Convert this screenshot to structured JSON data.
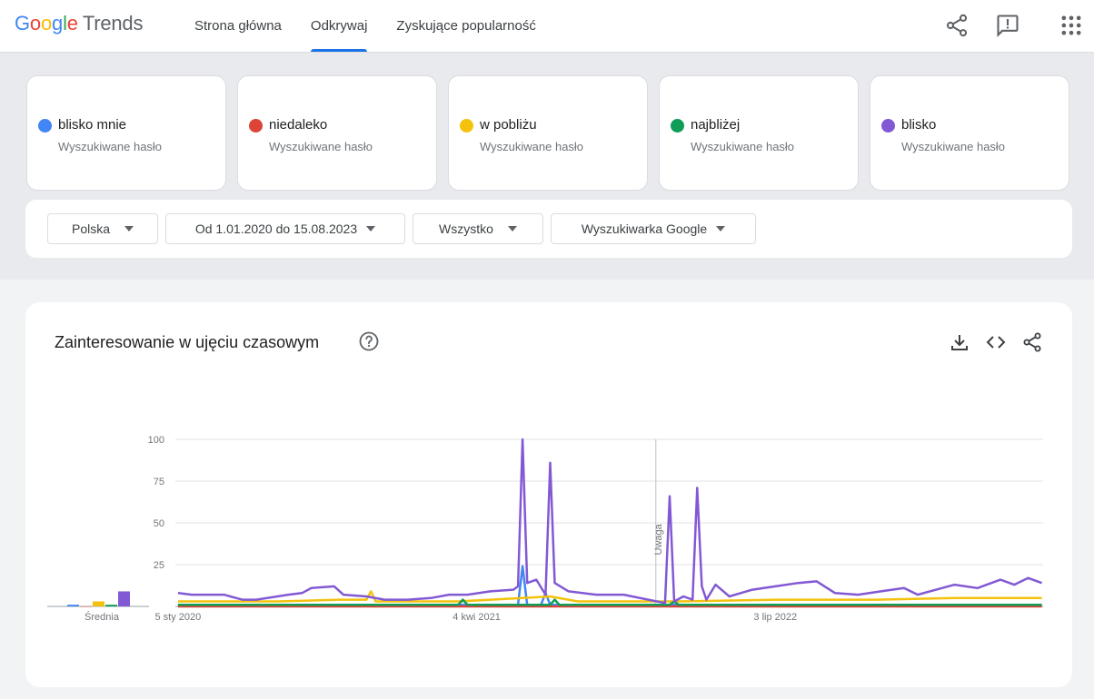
{
  "header": {
    "logo_google": "Google",
    "logo_trends": "Trends",
    "tabs": [
      {
        "label": "Strona główna",
        "active": false
      },
      {
        "label": "Odkrywaj",
        "active": true
      },
      {
        "label": "Zyskujące popularność",
        "active": false
      }
    ],
    "icons": [
      "share-icon",
      "feedback-icon",
      "apps-grid-icon"
    ]
  },
  "terms": [
    {
      "name": "blisko mnie",
      "subtitle": "Wyszukiwane hasło",
      "color": "#4285f4"
    },
    {
      "name": "niedaleko",
      "subtitle": "Wyszukiwane hasło",
      "color": "#db4437"
    },
    {
      "name": "w pobliżu",
      "subtitle": "Wyszukiwane hasło",
      "color": "#f4c20d"
    },
    {
      "name": "najbliżej",
      "subtitle": "Wyszukiwane hasło",
      "color": "#0f9d58"
    },
    {
      "name": "blisko",
      "subtitle": "Wyszukiwane hasło",
      "color": "#8259d4"
    }
  ],
  "filters": {
    "region": "Polska",
    "date_range": "Od 1.01.2020 do 15.08.2023",
    "category": "Wszystko",
    "property": "Wyszukiwarka Google"
  },
  "card": {
    "title": "Zainteresowanie w ujęciu czasowym",
    "icons": [
      "help-icon",
      "download-icon",
      "embed-icon",
      "share-icon"
    ]
  },
  "chart_data": {
    "type": "line",
    "title": "Zainteresowanie w ujęciu czasowym",
    "ylim": [
      0,
      100
    ],
    "y_ticks": [
      25,
      50,
      75,
      100
    ],
    "x_tick_labels": [
      "5 sty 2020",
      "4 kwi 2021",
      "3 lip 2022"
    ],
    "annotation": "Uwaga",
    "average_label": "Średnia",
    "averages": [
      {
        "name": "blisko mnie",
        "value": 1
      },
      {
        "name": "niedaleko",
        "value": 0
      },
      {
        "name": "w pobliżu",
        "value": 3
      },
      {
        "name": "najbliżej",
        "value": 1
      },
      {
        "name": "blisko",
        "value": 9
      }
    ],
    "series": [
      {
        "name": "blisko mnie",
        "color": "#4285f4",
        "x": [
          "2020-01-05",
          "2021-06-06",
          "2021-06-13",
          "2021-06-20",
          "2021-07-11",
          "2021-07-18",
          "2021-07-25",
          "2022-02-27",
          "2022-04-03",
          "2023-08-13"
        ],
        "values": [
          1,
          1,
          24,
          1,
          1,
          8,
          1,
          1,
          1,
          1
        ]
      },
      {
        "name": "niedaleko",
        "color": "#db4437",
        "x": [
          "2020-01-05",
          "2023-08-13"
        ],
        "values": [
          0,
          0
        ]
      },
      {
        "name": "w pobliżu",
        "color": "#f4c20d",
        "x": [
          "2020-01-05",
          "2020-06-07",
          "2020-09-06",
          "2020-10-18",
          "2020-10-25",
          "2020-11-01",
          "2021-03-07",
          "2021-06-13",
          "2021-07-25",
          "2021-09-05",
          "2022-02-06",
          "2022-07-03",
          "2022-12-04",
          "2023-04-02",
          "2023-08-13"
        ],
        "values": [
          3,
          3,
          4,
          4,
          9,
          3,
          3,
          5,
          6,
          3,
          3,
          4,
          4,
          5,
          5
        ]
      },
      {
        "name": "najbliżej",
        "color": "#0f9d58",
        "x": [
          "2020-01-05",
          "2021-03-07",
          "2021-03-14",
          "2021-03-21",
          "2021-07-25",
          "2021-08-01",
          "2021-08-08",
          "2022-01-23",
          "2022-01-30",
          "2022-02-06",
          "2023-08-13"
        ],
        "values": [
          1,
          1,
          4,
          1,
          1,
          4,
          1,
          1,
          3,
          1,
          1
        ]
      },
      {
        "name": "blisko",
        "color": "#8259d4",
        "x": [
          "2020-01-05",
          "2020-01-26",
          "2020-03-15",
          "2020-04-12",
          "2020-05-03",
          "2020-06-21",
          "2020-07-12",
          "2020-07-26",
          "2020-08-30",
          "2020-09-13",
          "2020-10-18",
          "2020-11-15",
          "2020-12-20",
          "2021-01-24",
          "2021-02-21",
          "2021-03-21",
          "2021-04-25",
          "2021-05-30",
          "2021-06-06",
          "2021-06-13",
          "2021-06-20",
          "2021-07-04",
          "2021-07-18",
          "2021-07-25",
          "2021-08-01",
          "2021-08-22",
          "2021-10-03",
          "2021-11-14",
          "2022-01-16",
          "2022-01-23",
          "2022-01-30",
          "2022-02-13",
          "2022-02-27",
          "2022-03-06",
          "2022-03-13",
          "2022-03-20",
          "2022-04-03",
          "2022-04-24",
          "2022-05-29",
          "2022-07-03",
          "2022-08-07",
          "2022-09-04",
          "2022-10-02",
          "2022-11-06",
          "2022-12-11",
          "2023-01-15",
          "2023-02-05",
          "2023-03-05",
          "2023-04-02",
          "2023-05-07",
          "2023-06-11",
          "2023-07-02",
          "2023-07-23",
          "2023-08-13"
        ],
        "values": [
          8,
          7,
          7,
          4,
          4,
          7,
          8,
          11,
          12,
          7,
          6,
          4,
          4,
          5,
          7,
          7,
          9,
          10,
          12,
          100,
          14,
          16,
          7,
          86,
          14,
          9,
          7,
          7,
          2,
          66,
          3,
          6,
          4,
          71,
          12,
          4,
          13,
          6,
          10,
          12,
          14,
          15,
          8,
          7,
          9,
          11,
          7,
          10,
          13,
          11,
          16,
          13,
          17,
          14
        ]
      }
    ]
  }
}
